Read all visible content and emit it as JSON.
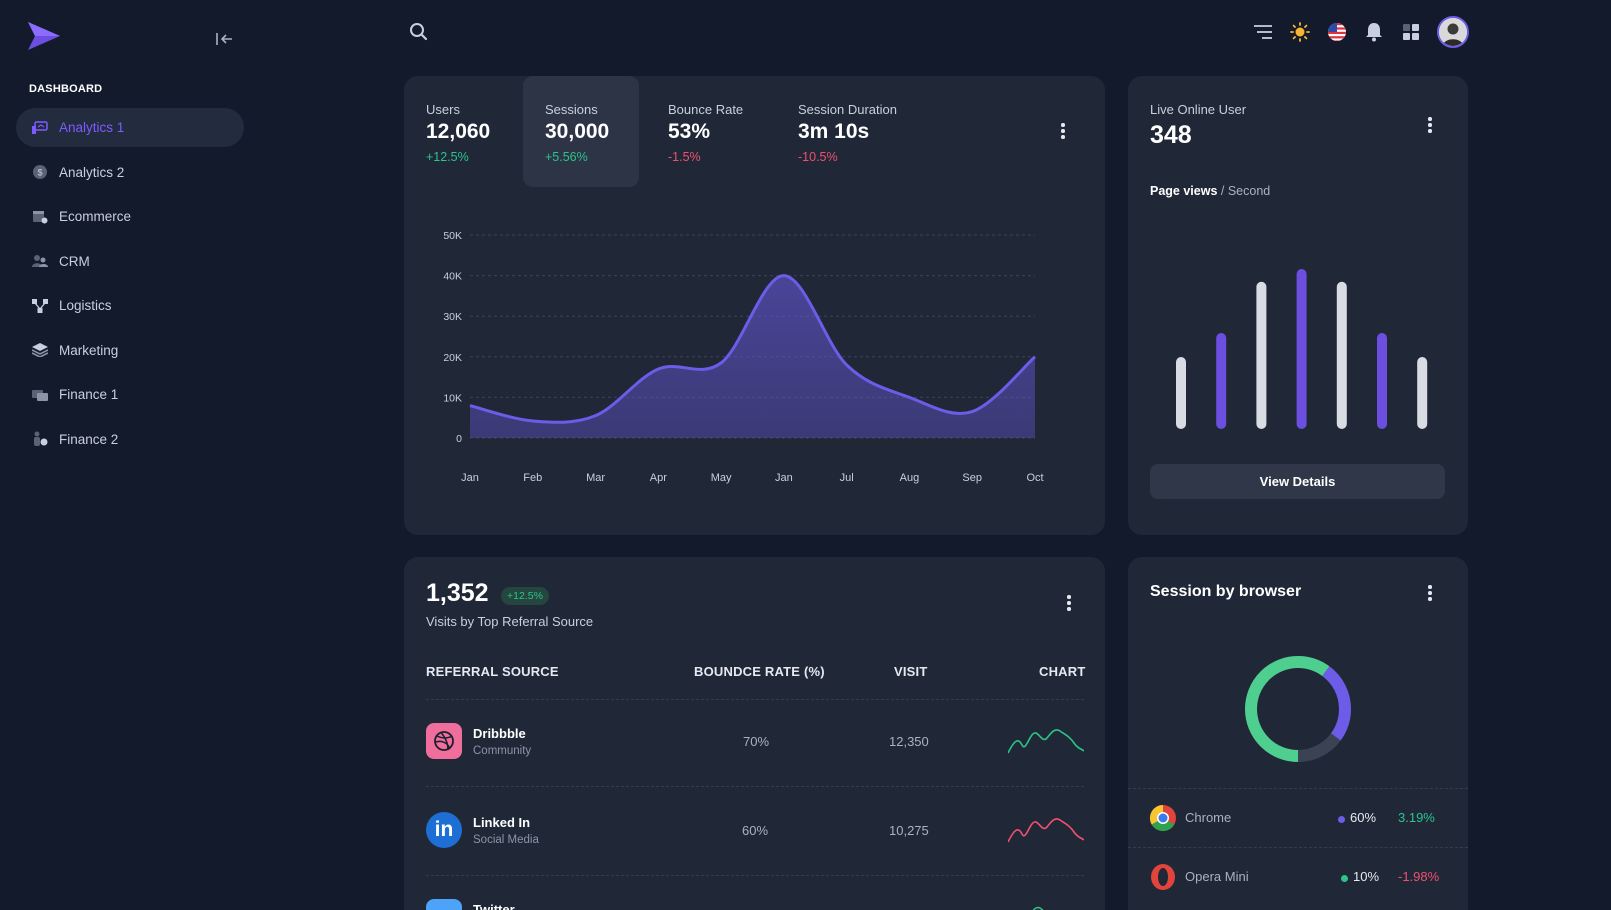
{
  "sidebar": {
    "section_title": "DASHBOARD",
    "items": [
      {
        "label": "Analytics 1",
        "icon": "analytics-icon",
        "active": true
      },
      {
        "label": "Analytics 2",
        "icon": "dollar-coin-icon"
      },
      {
        "label": "Ecommerce",
        "icon": "shop-icon"
      },
      {
        "label": "CRM",
        "icon": "people-icon"
      },
      {
        "label": "Logistics",
        "icon": "network-icon"
      },
      {
        "label": "Marketing",
        "icon": "layers-icon"
      },
      {
        "label": "Finance 1",
        "icon": "money-icon"
      },
      {
        "label": "Finance 2",
        "icon": "person-coin-icon"
      }
    ]
  },
  "header": {
    "icons": [
      "search-icon",
      "filter-lines-icon",
      "sun-icon",
      "us-flag-icon",
      "bell-icon",
      "grid-icon",
      "avatar"
    ]
  },
  "stats": [
    {
      "label": "Users",
      "value": "12,060",
      "change": "+12.5%",
      "trend": "up"
    },
    {
      "label": "Sessions",
      "value": "30,000",
      "change": "+5.56%",
      "trend": "up",
      "active": true
    },
    {
      "label": "Bounce Rate",
      "value": "53%",
      "change": "-1.5%",
      "trend": "down"
    },
    {
      "label": "Session Duration",
      "value": "3m 10s",
      "change": "-10.5%",
      "trend": "down"
    }
  ],
  "chart_data": {
    "type": "area",
    "categories": [
      "Jan",
      "Feb",
      "Mar",
      "Apr",
      "May",
      "Jan",
      "Jul",
      "Aug",
      "Sep",
      "Oct"
    ],
    "values": [
      8000,
      4200,
      5500,
      17000,
      18500,
      40000,
      18000,
      10000,
      6500,
      20000
    ],
    "yticks": [
      "0",
      "10K",
      "20K",
      "30K",
      "40K",
      "50K"
    ],
    "ylim": [
      0,
      50000
    ],
    "color": "#6c5ce7"
  },
  "live": {
    "label": "Live Online User",
    "value": "348",
    "pv_strong": "Page views",
    "pv_rest": " / Second",
    "bars": [
      0.45,
      0.6,
      0.92,
      1.0,
      0.92,
      0.6,
      0.45
    ],
    "bar_colors": [
      "#d9dce3",
      "#6c4ee0"
    ],
    "button": "View Details"
  },
  "referral": {
    "total": "1,352",
    "badge": "+12.5%",
    "subtitle": "Visits by Top Referral Source",
    "headers": {
      "source": "REFERRAL SOURCE",
      "bounce": "BOUNDCE RATE (%)",
      "visit": "VISIT",
      "chart": "CHART"
    },
    "rows": [
      {
        "name": "Dribbble",
        "category": "Community",
        "bounce": "70%",
        "visit": "12,350",
        "icon": "dribbble-icon",
        "color": "#ef6e9c",
        "spark": "#2bc48a"
      },
      {
        "name": "Linked In",
        "category": "Social Media",
        "bounce": "60%",
        "visit": "10,275",
        "icon": "linkedin-icon",
        "color": "#1d6fd6",
        "spark": "#f0506e"
      },
      {
        "name": "Twitter",
        "category": "",
        "bounce": "",
        "visit": "",
        "icon": "twitter-icon",
        "color": "#4da3f7",
        "spark": "#2bc48a"
      }
    ]
  },
  "browser": {
    "title": "Session by browser",
    "donut": {
      "segments": [
        {
          "value": 60,
          "color": "#4fcf8f"
        },
        {
          "value": 25,
          "color": "#6c5ce7"
        },
        {
          "value": 15,
          "color": "#3a4254"
        }
      ]
    },
    "rows": [
      {
        "name": "Chrome",
        "pct": "60%",
        "change": "3.19%",
        "trend": "up",
        "dot": "#6c5ce7",
        "icon": "chrome-icon"
      },
      {
        "name": "Opera Mini",
        "pct": "10%",
        "change": "-1.98%",
        "trend": "down",
        "dot": "#2bc48a",
        "icon": "opera-icon"
      }
    ]
  }
}
